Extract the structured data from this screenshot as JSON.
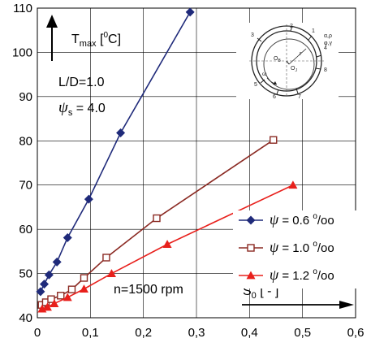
{
  "chart_data": {
    "type": "line",
    "xlim": [
      0,
      0.6
    ],
    "ylim": [
      40,
      110
    ],
    "xticks": [
      "0",
      "0,1",
      "0,2",
      "0,3",
      "0,4",
      "0,5",
      "0,6"
    ],
    "yticks": [
      "40",
      "50",
      "60",
      "70",
      "80",
      "90",
      "100",
      "110"
    ],
    "grid": true,
    "legend_position": "bottom-right",
    "y_axis_label": {
      "prefix": "T",
      "sub": "max",
      "unit_open": " [",
      "unit_sup": "0",
      "unit_close": "C]"
    },
    "x_axis_label": {
      "prefix": "S",
      "sub": "0",
      "rest": " [ - ]"
    },
    "annotations": {
      "ld": "L/D=1.0",
      "psi_s_sym": "ψ",
      "psi_s_sub": "s",
      "psi_s_val": " = 4.0",
      "speed": "n=1500 rpm"
    },
    "series": [
      {
        "name": "ψ = 0.6 ‰",
        "sym": "ψ",
        "eq": " = 0.6 ",
        "sup": "o",
        "unit": "/oo",
        "color": "#1f2a7a",
        "marker": "diamond",
        "x": [
          0.006,
          0.013,
          0.022,
          0.037,
          0.057,
          0.097,
          0.157,
          0.288
        ],
        "y": [
          45.9,
          47.6,
          49.7,
          52.6,
          58.1,
          66.8,
          81.8,
          109.1
        ]
      },
      {
        "name": "ψ = 1.0 ‰",
        "sym": "ψ",
        "eq": " = 1.0 ",
        "sup": "o",
        "unit": "/oo",
        "color": "#8b2a23",
        "marker": "square",
        "x": [
          0.008,
          0.016,
          0.026,
          0.044,
          0.065,
          0.088,
          0.13,
          0.225,
          0.445
        ],
        "y": [
          42.9,
          43.5,
          44.2,
          45.0,
          46.4,
          49.0,
          53.6,
          62.5,
          80.2
        ]
      },
      {
        "name": "ψ = 1.2 ‰",
        "sym": "ψ",
        "eq": " = 1.2 ",
        "sup": "o",
        "unit": "/oo",
        "color": "#e8201c",
        "marker": "triangle",
        "x": [
          0.009,
          0.019,
          0.032,
          0.057,
          0.088,
          0.14,
          0.245,
          0.482
        ],
        "y": [
          42.0,
          42.4,
          43.2,
          44.6,
          46.5,
          50.0,
          56.6,
          70.0
        ]
      }
    ],
    "diagram": {
      "labels": [
        "2",
        "1",
        "3",
        "4",
        "8",
        "5",
        "6",
        "7",
        "O",
        "B",
        "O",
        "J",
        "r",
        "ω",
        "α,ρ",
        "φ,γ"
      ]
    }
  }
}
